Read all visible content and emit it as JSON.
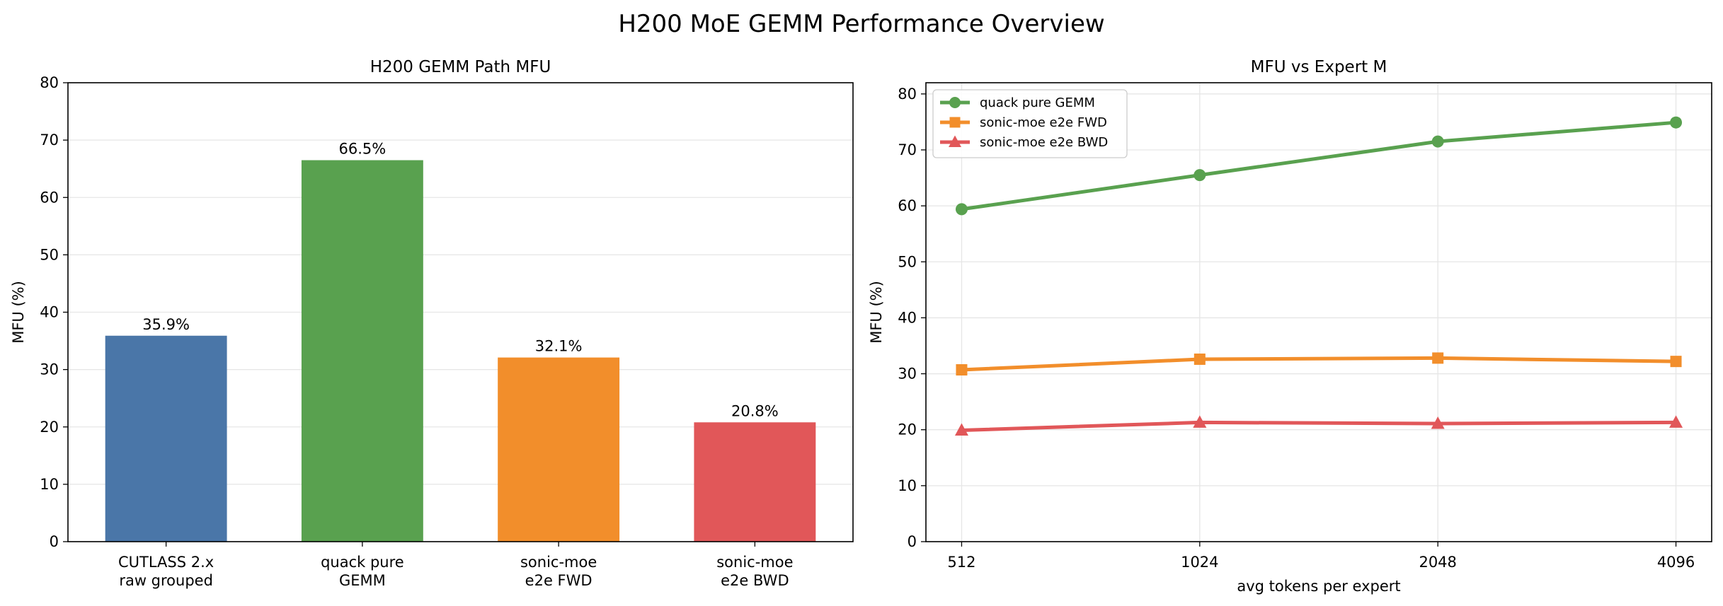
{
  "figure_title": "H200 MoE GEMM Performance Overview",
  "colors": {
    "blue": "#4a76a8",
    "green": "#59a14f",
    "orange": "#f28e2b",
    "red": "#e15759",
    "grid": "#e6e6e6",
    "axis": "#000000"
  },
  "chart_data": [
    {
      "type": "bar",
      "title": "H200 GEMM Path MFU",
      "xlabel": "",
      "ylabel": "MFU (%)",
      "categories": [
        [
          "CUTLASS 2.x",
          "raw grouped"
        ],
        [
          "quack pure",
          "GEMM"
        ],
        [
          "sonic-moe",
          "e2e FWD"
        ],
        [
          "sonic-moe",
          "e2e BWD"
        ]
      ],
      "values": [
        35.9,
        66.5,
        32.1,
        20.8
      ],
      "data_labels": [
        "35.9%",
        "66.5%",
        "32.1%",
        "20.8%"
      ],
      "bar_colors": [
        "#4a76a8",
        "#59a14f",
        "#f28e2b",
        "#e15759"
      ],
      "ylim": [
        0,
        80
      ],
      "yticks": [
        0,
        10,
        20,
        30,
        40,
        50,
        60,
        70,
        80
      ],
      "grid": "y"
    },
    {
      "type": "line",
      "title": "MFU vs Expert M",
      "xlabel": "avg tokens per expert",
      "ylabel": "MFU (%)",
      "x": [
        512,
        1024,
        2048,
        4096
      ],
      "xscale": "log2",
      "xticks": [
        "512",
        "1024",
        "2048",
        "4096"
      ],
      "ylim": [
        0,
        82
      ],
      "yticks": [
        0,
        10,
        20,
        30,
        40,
        50,
        60,
        70,
        80
      ],
      "grid": "both",
      "legend_position": "top-left",
      "series": [
        {
          "name": "quack pure GEMM",
          "values": [
            59.4,
            65.5,
            71.5,
            74.9
          ],
          "color": "#59a14f",
          "marker": "circle"
        },
        {
          "name": "sonic-moe e2e FWD",
          "values": [
            30.7,
            32.6,
            32.8,
            32.2
          ],
          "color": "#f28e2b",
          "marker": "square"
        },
        {
          "name": "sonic-moe e2e BWD",
          "values": [
            19.9,
            21.3,
            21.1,
            21.3
          ],
          "color": "#e15759",
          "marker": "triangle"
        }
      ]
    }
  ]
}
